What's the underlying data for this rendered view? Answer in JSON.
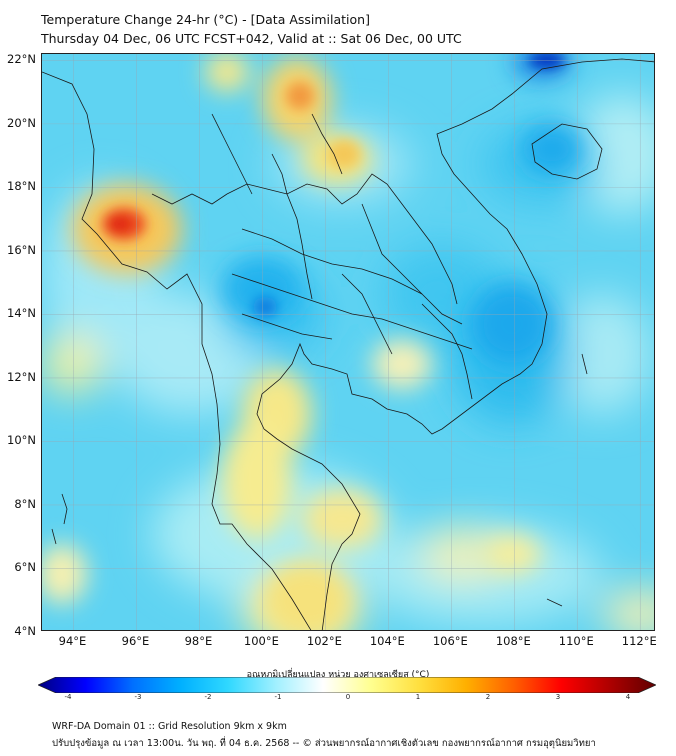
{
  "header": {
    "title_line_1": "Temperature Change 24-hr (°C) - [Data Assimilation]",
    "title_line_2": "Thursday 04 Dec, 06 UTC FCST+042, Valid at :: Sat 06 Dec, 00 UTC"
  },
  "map": {
    "lat_labels": [
      "22°N",
      "20°N",
      "18°N",
      "16°N",
      "14°N",
      "12°N",
      "10°N",
      "8°N",
      "6°N",
      "4°N"
    ],
    "lon_labels": [
      "94°E",
      "96°E",
      "98°E",
      "100°E",
      "102°E",
      "104°E",
      "106°E",
      "108°E",
      "110°E",
      "112°E"
    ],
    "extent": {
      "lon_min": 93,
      "lon_max": 112.5,
      "lat_min": 4,
      "lat_max": 22.2
    },
    "gridlines": true,
    "background_color": "#5fd3f2"
  },
  "colorbar": {
    "title": "อุณหภูมิเปลี่ยนแปลง หน่วย องศาเซลเซียส (°C)",
    "tick_labels": [
      "-4",
      "-3",
      "-2",
      "-1",
      "0",
      "1",
      "2",
      "3",
      "4"
    ],
    "range": [
      -4,
      4
    ],
    "colors": [
      "#000080",
      "#0000ff",
      "#0070ff",
      "#00b0ff",
      "#30d8ff",
      "#a0f0ff",
      "#ffffff",
      "#ffff90",
      "#ffe040",
      "#ffb000",
      "#ff6000",
      "#ff0000",
      "#b00000",
      "#600000"
    ]
  },
  "footer": {
    "line_1": "WRF-DA Domain 01 :: Grid Resolution 9km x 9km",
    "line_2": "ปรับปรุงข้อมูล ณ เวลา 13:00น. วัน พฤ. ที่ 04 ธ.ค. 2568 -- © ส่วนพยากรณ์อากาศเชิงตัวเลข กองพยากรณ์อากาศ กรมอุตุนิยมวิทยา"
  }
}
